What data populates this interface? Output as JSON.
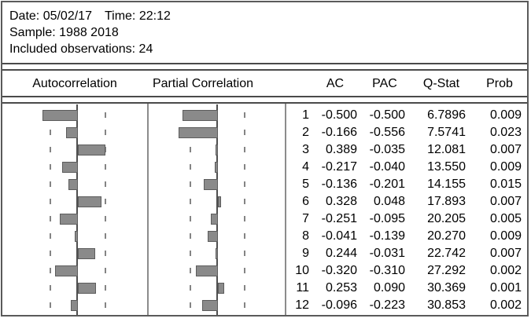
{
  "info": {
    "date": "Date: 05/02/17",
    "time": "Time: 22:12",
    "sample": "Sample: 1988 2018",
    "observations": "Included observations: 24"
  },
  "headers": {
    "autocorrelation": "Autocorrelation",
    "partial_correlation": "Partial Correlation",
    "ac": "AC",
    "pac": "PAC",
    "qstat": "Q-Stat",
    "prob": "Prob"
  },
  "colors": {
    "bar_fill": "#8a8a8a",
    "bar_border": "#5c5c5c",
    "center_line": "#4f4f4f",
    "dashed_band": "#848484",
    "separator": "#8c8c8c",
    "rule": "#4a4a4a"
  },
  "chart_data": {
    "type": "bar",
    "orientation": "horizontal",
    "title": "Correlogram",
    "panels": [
      "Autocorrelation",
      "Partial Correlation"
    ],
    "categories": [
      1,
      2,
      3,
      4,
      5,
      6,
      7,
      8,
      9,
      10,
      11,
      12
    ],
    "series": [
      {
        "name": "AC",
        "values": [
          -0.5,
          -0.166,
          0.389,
          -0.217,
          -0.136,
          0.328,
          -0.251,
          -0.041,
          0.244,
          -0.32,
          0.253,
          -0.096
        ]
      },
      {
        "name": "PAC",
        "values": [
          -0.5,
          -0.556,
          -0.035,
          -0.04,
          -0.201,
          0.048,
          -0.095,
          -0.139,
          -0.031,
          -0.31,
          0.09,
          -0.223
        ]
      }
    ],
    "xlim": [
      -0.95,
      0.95
    ],
    "confidence_bounds": [
      -0.408,
      0.408
    ],
    "grid": "dashed-confidence-bands",
    "table": {
      "columns": [
        "AC",
        "PAC",
        "Q-Stat",
        "Prob"
      ],
      "rows": [
        {
          "lag": "1",
          "ac": "-0.500",
          "pac": "-0.500",
          "qstat": "6.7896",
          "prob": "0.009"
        },
        {
          "lag": "2",
          "ac": "-0.166",
          "pac": "-0.556",
          "qstat": "7.5741",
          "prob": "0.023"
        },
        {
          "lag": "3",
          "ac": "0.389",
          "pac": "-0.035",
          "qstat": "12.081",
          "prob": "0.007"
        },
        {
          "lag": "4",
          "ac": "-0.217",
          "pac": "-0.040",
          "qstat": "13.550",
          "prob": "0.009"
        },
        {
          "lag": "5",
          "ac": "-0.136",
          "pac": "-0.201",
          "qstat": "14.155",
          "prob": "0.015"
        },
        {
          "lag": "6",
          "ac": "0.328",
          "pac": "0.048",
          "qstat": "17.893",
          "prob": "0.007"
        },
        {
          "lag": "7",
          "ac": "-0.251",
          "pac": "-0.095",
          "qstat": "20.205",
          "prob": "0.005"
        },
        {
          "lag": "8",
          "ac": "-0.041",
          "pac": "-0.139",
          "qstat": "20.270",
          "prob": "0.009"
        },
        {
          "lag": "9",
          "ac": "0.244",
          "pac": "-0.031",
          "qstat": "22.742",
          "prob": "0.007"
        },
        {
          "lag": "10",
          "ac": "-0.320",
          "pac": "-0.310",
          "qstat": "27.292",
          "prob": "0.002"
        },
        {
          "lag": "11",
          "ac": "0.253",
          "pac": "0.090",
          "qstat": "30.369",
          "prob": "0.001"
        },
        {
          "lag": "12",
          "ac": "-0.096",
          "pac": "-0.223",
          "qstat": "30.853",
          "prob": "0.002"
        }
      ]
    }
  }
}
